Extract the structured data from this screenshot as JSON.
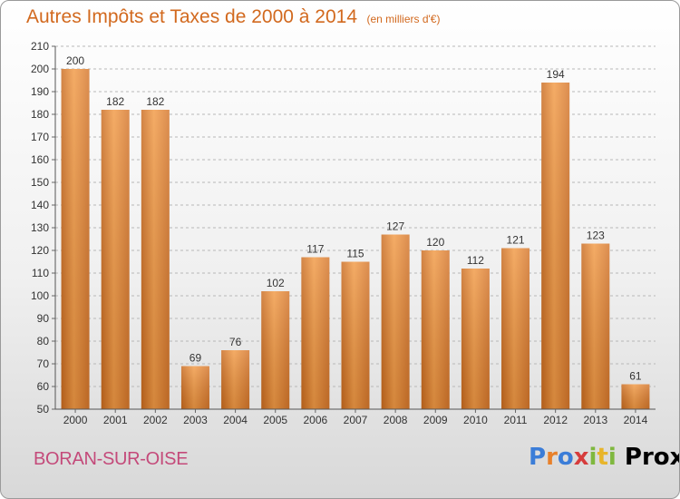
{
  "chart_data": {
    "type": "bar",
    "title": "Autres Impôts et Taxes de 2000 à 2014",
    "subtitle": "(en milliers d'€)",
    "categories": [
      "2000",
      "2001",
      "2002",
      "2003",
      "2004",
      "2005",
      "2006",
      "2007",
      "2008",
      "2009",
      "2010",
      "2011",
      "2012",
      "2013",
      "2014"
    ],
    "values": [
      200,
      182,
      182,
      69,
      76,
      102,
      117,
      115,
      127,
      120,
      112,
      121,
      194,
      123,
      61
    ],
    "ylim": [
      50,
      210
    ],
    "yticks": [
      50,
      60,
      70,
      80,
      90,
      100,
      110,
      120,
      130,
      140,
      150,
      160,
      170,
      180,
      190,
      200,
      210
    ],
    "grid": "horizontal dashed",
    "bar_color": "#e8812b",
    "bar_color_light": "#f7a65a"
  },
  "footer": {
    "city": "BORAN-SUR-OISE",
    "logo_text": "Proxiti",
    "logo_letters": [
      {
        "char": "P",
        "color": "#3b7dd8"
      },
      {
        "char": "r",
        "color": "#e8812b"
      },
      {
        "char": "o",
        "color": "#3b7dd8"
      },
      {
        "char": "x",
        "color": "#d63c3c"
      },
      {
        "char": "i",
        "color": "#7fb83f"
      },
      {
        "char": "t",
        "color": "#e8b52b"
      },
      {
        "char": "i",
        "color": "#7fb83f"
      }
    ]
  }
}
